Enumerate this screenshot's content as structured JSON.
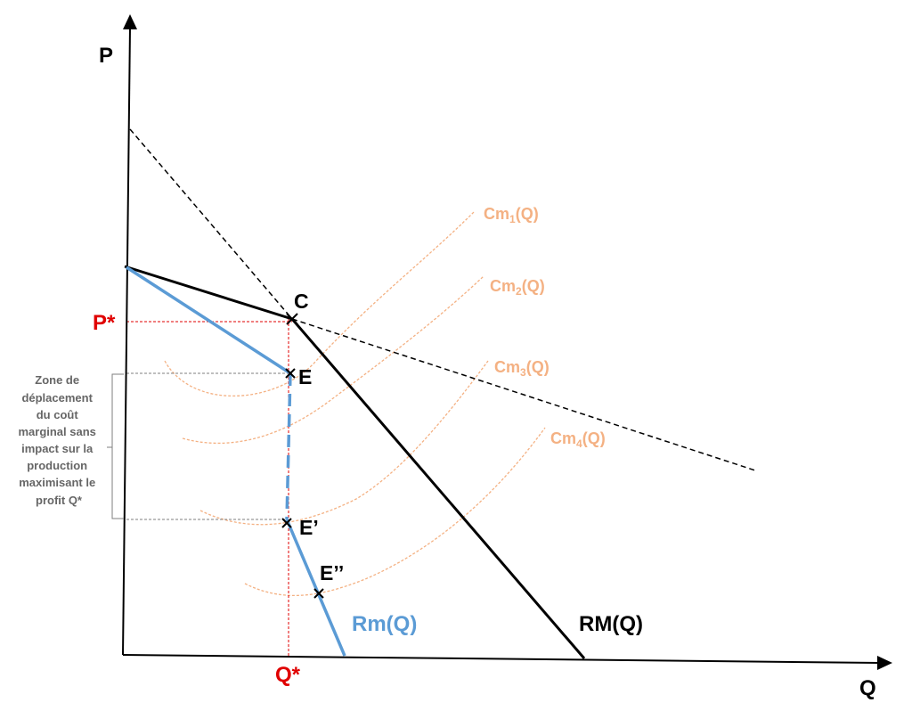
{
  "axes": {
    "y_label": "P",
    "x_label": "Q"
  },
  "points": {
    "c": "C",
    "e": "E",
    "e_prime": "E’",
    "e_double_prime": "E’’"
  },
  "equilibrium": {
    "price_label": "P*",
    "quantity_label": "Q*"
  },
  "curves": {
    "average_revenue": "RM(Q)",
    "marginal_revenue": "Rm(Q)",
    "marginal_cost_1": "Cm",
    "marginal_cost_1_sub": "1",
    "marginal_cost_2": "Cm",
    "marginal_cost_2_sub": "2",
    "marginal_cost_3": "Cm",
    "marginal_cost_3_sub": "3",
    "marginal_cost_4": "Cm",
    "marginal_cost_4_sub": "4",
    "marginal_cost_arg": "(Q)"
  },
  "zone_note": {
    "lines": [
      "Zone de",
      "déplacement",
      "du coût",
      "marginal sans",
      "impact sur la",
      "production",
      "maximisant le",
      "profit Q*"
    ]
  },
  "colors": {
    "highlight_red": "#e00000",
    "marginal_revenue_blue": "#5b9bd5",
    "marginal_cost_orange": "#f4b183",
    "guide_gray": "#7f7f7f",
    "axis_black": "#000000"
  }
}
